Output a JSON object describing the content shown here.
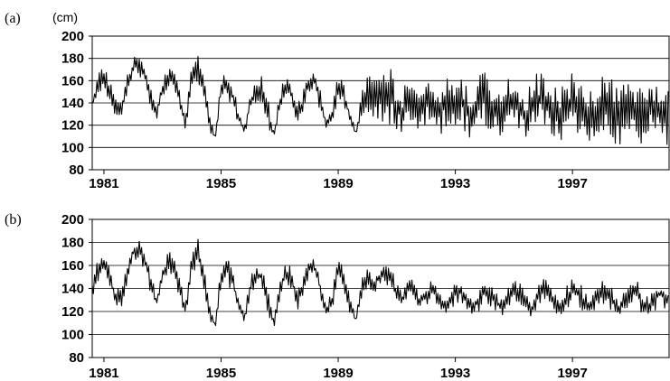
{
  "chart_data": [
    {
      "type": "line",
      "panel_label": "(a)",
      "unit": "(cm)",
      "title": "",
      "xlabel": "",
      "ylabel": "",
      "xlim": [
        1980.6,
        2000.3
      ],
      "ylim": [
        80,
        200
      ],
      "yticks": [
        80,
        100,
        120,
        140,
        160,
        180,
        200
      ],
      "ytick_labels": [
        "80",
        "100",
        "120",
        "140",
        "160",
        "180",
        "200"
      ],
      "xticks": [
        1981,
        1985,
        1989,
        1993,
        1997
      ],
      "xtick_labels": [
        "1981",
        "1985",
        "1989",
        "1993",
        "1997"
      ],
      "grid": "horizontal",
      "series": [
        {
          "color": "#000000",
          "x": [
            1980.6,
            1980.8,
            1981.0,
            1981.2,
            1981.4,
            1981.6,
            1981.8,
            1982.0,
            1982.2,
            1982.4,
            1982.6,
            1982.8,
            1983.0,
            1983.2,
            1983.4,
            1983.6,
            1983.8,
            1984.0,
            1984.2,
            1984.4,
            1984.6,
            1984.8,
            1985.0,
            1985.2,
            1985.4,
            1985.6,
            1985.8,
            1986.0,
            1986.2,
            1986.4,
            1986.6,
            1986.8,
            1987.0,
            1987.2,
            1987.4,
            1987.6,
            1987.8,
            1988.0,
            1988.2,
            1988.4,
            1988.6,
            1988.8,
            1989.0,
            1989.2,
            1989.4,
            1989.6,
            1989.8,
            1990.0,
            1990.2,
            1990.4,
            1990.6,
            1990.8,
            1991.0,
            1991.2,
            1991.4,
            1991.6,
            1991.8,
            1992.0,
            1992.2,
            1992.4,
            1992.6,
            1992.8,
            1993.0,
            1993.2,
            1993.4,
            1993.6,
            1993.8,
            1994.0,
            1994.2,
            1994.4,
            1994.6,
            1994.8,
            1995.0,
            1995.2,
            1995.4,
            1995.6,
            1995.8,
            1996.0,
            1996.2,
            1996.4,
            1996.6,
            1996.8,
            1997.0,
            1997.2,
            1997.4,
            1997.6,
            1997.8,
            1998.0,
            1998.2,
            1998.4,
            1998.6,
            1998.8,
            1999.0,
            1999.2,
            1999.4,
            1999.6,
            1999.8,
            2000.0,
            2000.3
          ],
          "y_upper": [
            148,
            170,
            175,
            160,
            145,
            140,
            165,
            180,
            185,
            175,
            160,
            135,
            160,
            175,
            170,
            150,
            130,
            175,
            185,
            165,
            130,
            110,
            165,
            165,
            155,
            135,
            120,
            150,
            160,
            165,
            145,
            115,
            150,
            165,
            160,
            140,
            150,
            170,
            170,
            150,
            125,
            140,
            165,
            160,
            135,
            115,
            150,
            170,
            165,
            175,
            180,
            170,
            155,
            150,
            165,
            160,
            150,
            170,
            165,
            155,
            170,
            160,
            160,
            170,
            155,
            150,
            165,
            175,
            160,
            155,
            160,
            170,
            165,
            155,
            150,
            160,
            170,
            165,
            155,
            160,
            155,
            165,
            170,
            160,
            155,
            150,
            160,
            170,
            165,
            160,
            155,
            165,
            160,
            150,
            160,
            165,
            160,
            165,
            155
          ],
          "y_lower": [
            130,
            145,
            155,
            140,
            125,
            125,
            145,
            165,
            165,
            155,
            135,
            125,
            145,
            155,
            150,
            130,
            115,
            150,
            160,
            140,
            115,
            105,
            140,
            145,
            135,
            120,
            110,
            130,
            140,
            140,
            120,
            105,
            130,
            145,
            140,
            120,
            130,
            150,
            150,
            130,
            115,
            120,
            145,
            135,
            120,
            110,
            125,
            125,
            120,
            125,
            120,
            120,
            110,
            115,
            120,
            120,
            110,
            115,
            120,
            115,
            110,
            115,
            120,
            115,
            110,
            105,
            115,
            120,
            115,
            110,
            105,
            115,
            120,
            115,
            105,
            110,
            115,
            120,
            110,
            105,
            100,
            110,
            115,
            110,
            105,
            100,
            110,
            115,
            115,
            105,
            100,
            110,
            105,
            100,
            105,
            110,
            105,
            110,
            98
          ]
        }
      ]
    },
    {
      "type": "line",
      "panel_label": "(b)",
      "title": "",
      "xlabel": "",
      "ylabel": "",
      "xlim": [
        1980.6,
        2000.3
      ],
      "ylim": [
        80,
        200
      ],
      "yticks": [
        80,
        100,
        120,
        140,
        160,
        180,
        200
      ],
      "ytick_labels": [
        "80",
        "100",
        "120",
        "140",
        "160",
        "180",
        "200"
      ],
      "xticks": [
        1981,
        1985,
        1989,
        1993,
        1997
      ],
      "xtick_labels": [
        "1981",
        "1985",
        "1989",
        "1993",
        "1997"
      ],
      "grid": "horizontal",
      "series": [
        {
          "color": "#000000",
          "x": [
            1980.6,
            1980.8,
            1981.0,
            1981.2,
            1981.4,
            1981.6,
            1981.8,
            1982.0,
            1982.2,
            1982.4,
            1982.6,
            1982.8,
            1983.0,
            1983.2,
            1983.4,
            1983.6,
            1983.8,
            1984.0,
            1984.2,
            1984.4,
            1984.6,
            1984.8,
            1985.0,
            1985.2,
            1985.4,
            1985.6,
            1985.8,
            1986.0,
            1986.2,
            1986.4,
            1986.6,
            1986.8,
            1987.0,
            1987.2,
            1987.4,
            1987.6,
            1987.8,
            1988.0,
            1988.2,
            1988.4,
            1988.6,
            1988.8,
            1989.0,
            1989.2,
            1989.4,
            1989.6,
            1989.8,
            1990.0,
            1990.2,
            1990.4,
            1990.6,
            1990.8,
            1991.0,
            1991.2,
            1991.4,
            1991.6,
            1991.8,
            1992.0,
            1992.2,
            1992.4,
            1992.6,
            1992.8,
            1993.0,
            1993.2,
            1993.4,
            1993.6,
            1993.8,
            1994.0,
            1994.2,
            1994.4,
            1994.6,
            1994.8,
            1995.0,
            1995.2,
            1995.4,
            1995.6,
            1995.8,
            1996.0,
            1996.2,
            1996.4,
            1996.6,
            1996.8,
            1997.0,
            1997.2,
            1997.4,
            1997.6,
            1997.8,
            1998.0,
            1998.2,
            1998.4,
            1998.6,
            1998.8,
            1999.0,
            1999.2,
            1999.4,
            1999.6,
            1999.8,
            2000.0,
            2000.3
          ],
          "y_upper": [
            150,
            168,
            172,
            158,
            142,
            138,
            162,
            178,
            183,
            172,
            158,
            132,
            158,
            173,
            168,
            148,
            128,
            172,
            186,
            165,
            128,
            110,
            162,
            168,
            156,
            134,
            120,
            150,
            160,
            162,
            142,
            112,
            148,
            162,
            160,
            138,
            150,
            168,
            168,
            148,
            125,
            140,
            165,
            158,
            132,
            115,
            150,
            158,
            152,
            160,
            168,
            158,
            145,
            138,
            152,
            145,
            135,
            142,
            150,
            142,
            132,
            135,
            145,
            148,
            140,
            132,
            138,
            150,
            145,
            138,
            130,
            142,
            150,
            145,
            135,
            130,
            145,
            152,
            145,
            135,
            128,
            142,
            152,
            148,
            138,
            130,
            140,
            150,
            148,
            138,
            130,
            140,
            150,
            148,
            138,
            132,
            142,
            148,
            140
          ],
          "y_lower": [
            130,
            145,
            155,
            140,
            125,
            123,
            145,
            165,
            165,
            155,
            135,
            123,
            145,
            155,
            150,
            130,
            113,
            150,
            160,
            140,
            113,
            105,
            140,
            145,
            135,
            120,
            110,
            130,
            140,
            140,
            118,
            105,
            130,
            145,
            140,
            120,
            130,
            150,
            150,
            130,
            115,
            120,
            145,
            133,
            118,
            110,
            130,
            140,
            135,
            140,
            145,
            138,
            128,
            124,
            132,
            128,
            122,
            124,
            130,
            124,
            118,
            120,
            126,
            128,
            122,
            117,
            120,
            128,
            124,
            120,
            115,
            120,
            128,
            124,
            118,
            115,
            120,
            128,
            124,
            118,
            115,
            120,
            128,
            124,
            118,
            115,
            120,
            128,
            124,
            118,
            115,
            120,
            126,
            124,
            118,
            115,
            120,
            124,
            120
          ]
        }
      ]
    }
  ]
}
